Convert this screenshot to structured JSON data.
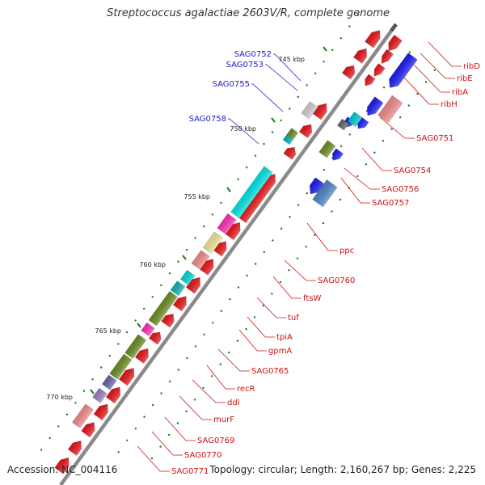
{
  "title": "Streptococcus agalactiae 2603V/R, complete genome",
  "footer": {
    "accession": "Accession: NC_004116",
    "summary": "Topology: circular; Length: 2,160,267 bp; Genes: 2,225"
  },
  "colors": {
    "backbone": "#8a8a8a",
    "forward_label": "#1c1cc8",
    "reverse_label": "#cc1111",
    "tick": "#1a7a1a"
  },
  "scale_labels": [
    "745 kbp",
    "750 kbp",
    "755 kbp",
    "760 kbp",
    "765 kbp",
    "770 kbp"
  ],
  "forward_labels": [
    "SAG0752",
    "SAG0753",
    "SAG0755",
    "SAG0758"
  ],
  "reverse_labels": [
    "ribD",
    "ribE",
    "ribA",
    "ribH",
    "SAG0751",
    "SAG0754",
    "SAG0756",
    "SAG0757",
    "ppc",
    "SAG0760",
    "ftsW",
    "tuf",
    "tpiA",
    "gpmA",
    "SAG0765",
    "recR",
    "ddl",
    "murF",
    "SAG0769",
    "SAG0770",
    "SAG0771"
  ]
}
